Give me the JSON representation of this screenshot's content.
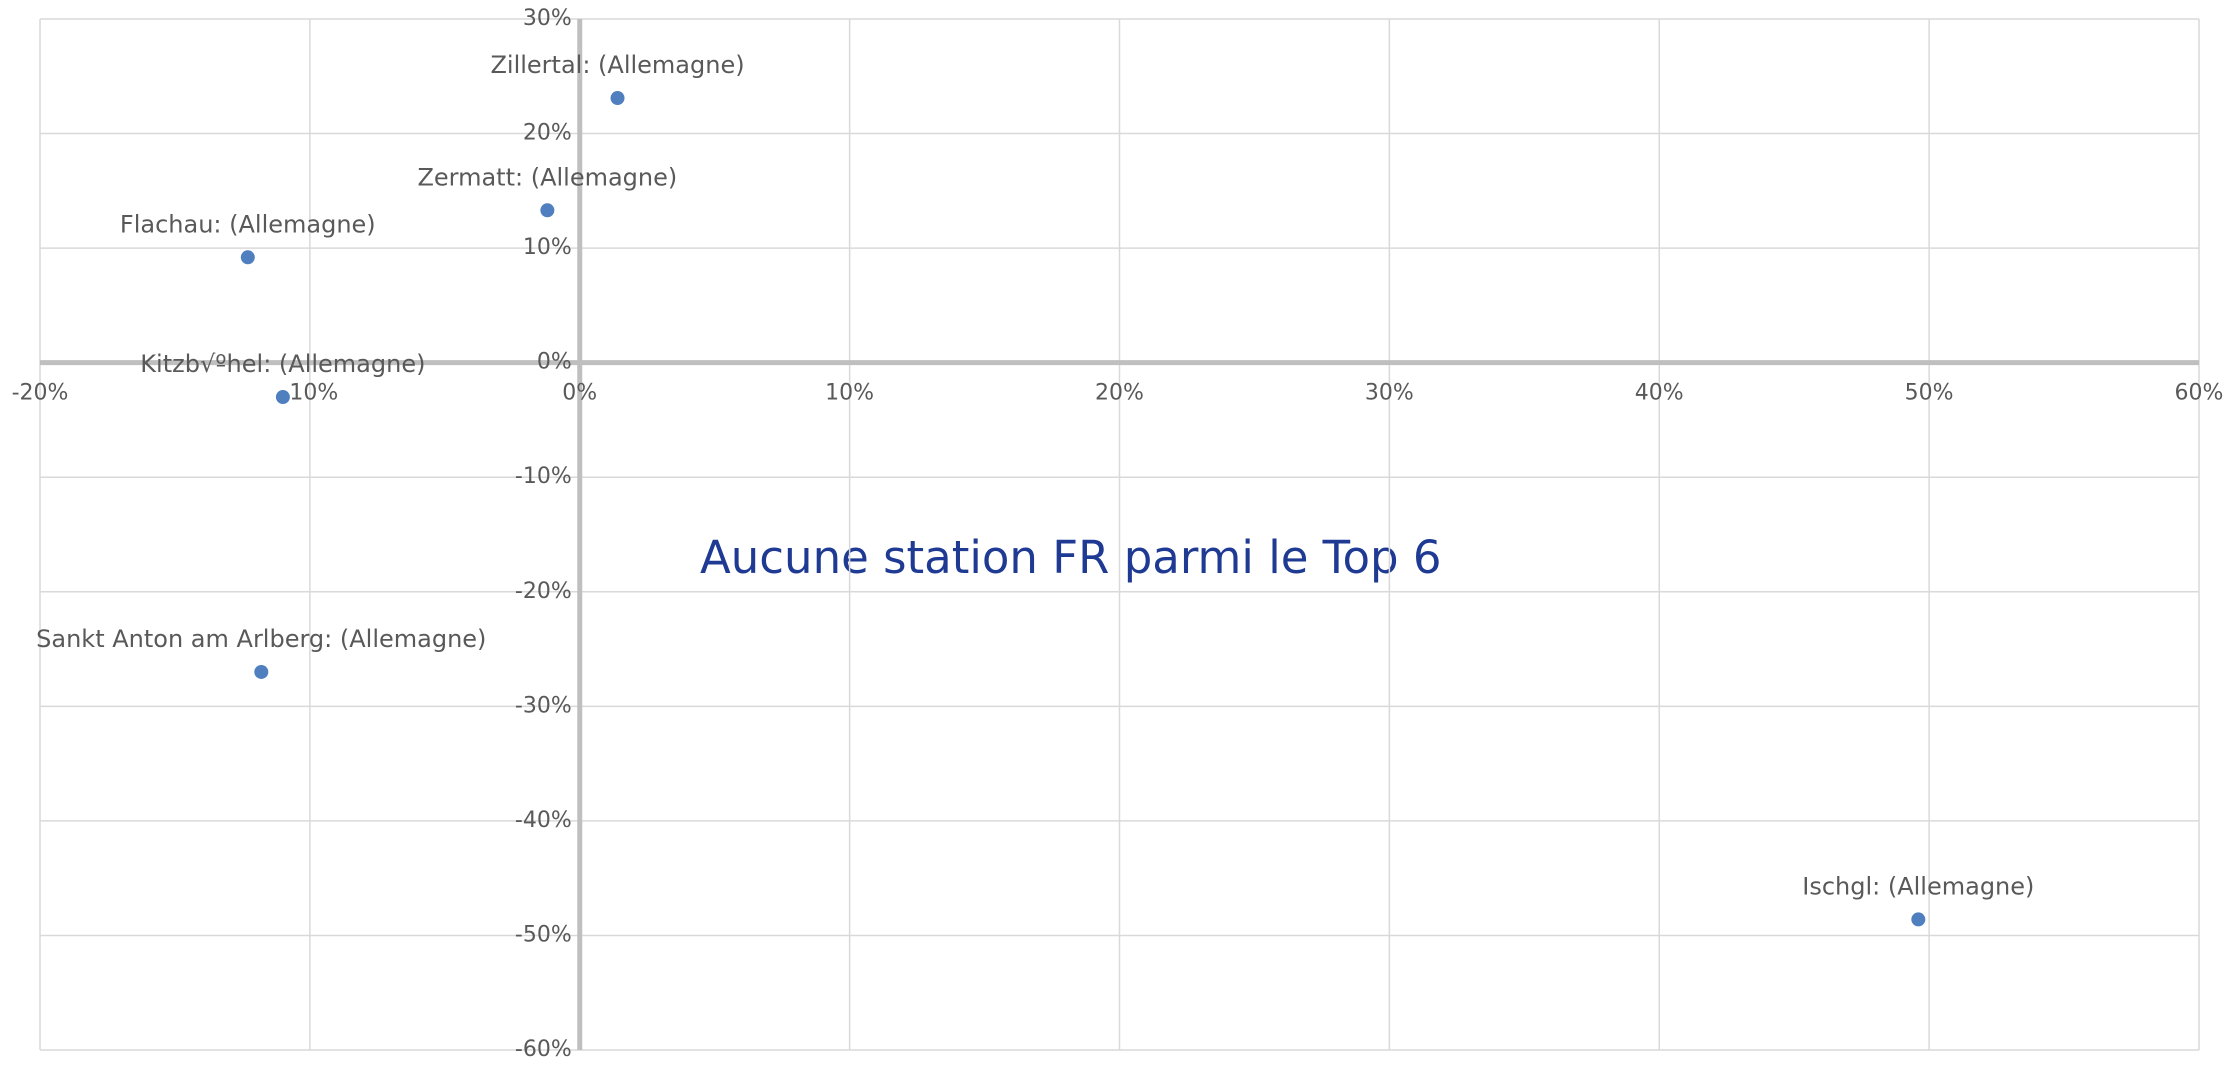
{
  "chart_data": {
    "type": "scatter",
    "annotation": "Aucune station FR parmi le Top 6",
    "point_labels": [
      "Zillertal: (Allemagne)",
      "Zermatt: (Allemagne)",
      "Flachau: (Allemagne)",
      "Kitzb√ºhel: (Allemagne)",
      "Sankt Anton am Arlberg: (Allemagne)",
      "Ischgl: (Allemagne)"
    ],
    "x": [
      1.4,
      -1.2,
      -12.3,
      -11.0,
      -11.8,
      49.6
    ],
    "values": [
      23.1,
      13.3,
      9.2,
      -3.0,
      -27.0,
      -48.6
    ],
    "color": "#4f7fbf",
    "xlim": [
      -20,
      60
    ],
    "ylim": [
      -60,
      30
    ],
    "xticks": [
      {
        "value": -20,
        "label": "-20%"
      },
      {
        "value": -10,
        "label": "-10%"
      },
      {
        "value": 0,
        "label": "0%"
      },
      {
        "value": 10,
        "label": "10%"
      },
      {
        "value": 20,
        "label": "20%"
      },
      {
        "value": 30,
        "label": "30%"
      },
      {
        "value": 40,
        "label": "40%"
      },
      {
        "value": 50,
        "label": "50%"
      },
      {
        "value": 60,
        "label": "60%"
      }
    ],
    "yticks": [
      {
        "value": -60,
        "label": "-60%"
      },
      {
        "value": -50,
        "label": "-50%"
      },
      {
        "value": -40,
        "label": "-40%"
      },
      {
        "value": -30,
        "label": "-30%"
      },
      {
        "value": -20,
        "label": "-20%"
      },
      {
        "value": -10,
        "label": "-10%"
      },
      {
        "value": 0,
        "label": "0%"
      },
      {
        "value": 10,
        "label": "10%"
      },
      {
        "value": 20,
        "label": "20%"
      },
      {
        "value": 30,
        "label": "30%"
      }
    ],
    "grid": true
  }
}
